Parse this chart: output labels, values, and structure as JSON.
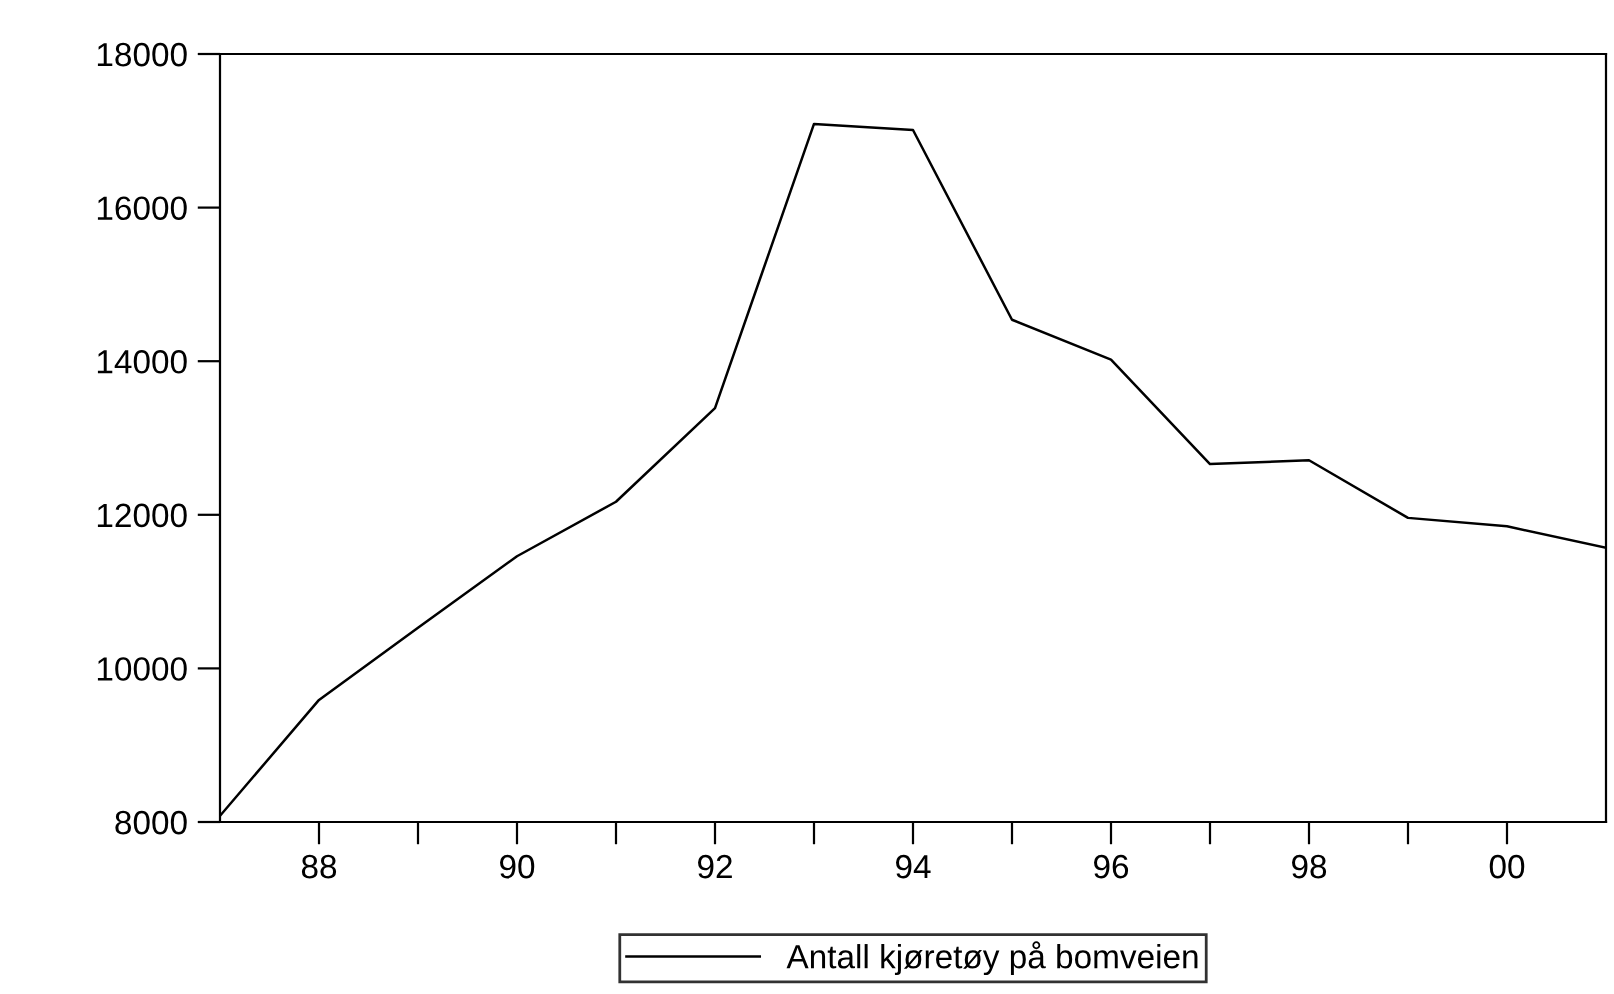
{
  "chart_data": {
    "type": "line",
    "x": [
      1987,
      1988,
      1989,
      1990,
      1991,
      1992,
      1993,
      1994,
      1995,
      1996,
      1997,
      1998,
      1999,
      2000,
      2001
    ],
    "series": [
      {
        "name": "Antall kjøretøy på bomveien",
        "color": "#000000",
        "values": [
          8080,
          9590,
          10530,
          11460,
          12170,
          13390,
          17090,
          17010,
          14540,
          14020,
          12660,
          12710,
          11960,
          11850,
          11570
        ]
      }
    ],
    "xlim": [
      1987,
      2001
    ],
    "xticks": [
      {
        "value": 1988,
        "label": "88"
      },
      {
        "value": 1989,
        "label": null
      },
      {
        "value": 1990,
        "label": "90"
      },
      {
        "value": 1991,
        "label": null
      },
      {
        "value": 1992,
        "label": "92"
      },
      {
        "value": 1993,
        "label": null
      },
      {
        "value": 1994,
        "label": "94"
      },
      {
        "value": 1995,
        "label": null
      },
      {
        "value": 1996,
        "label": "96"
      },
      {
        "value": 1997,
        "label": null
      },
      {
        "value": 1998,
        "label": "98"
      },
      {
        "value": 1999,
        "label": null
      },
      {
        "value": 2000,
        "label": "00"
      }
    ],
    "ylim": [
      8000,
      18000
    ],
    "yticks": [
      8000,
      10000,
      12000,
      14000,
      16000,
      18000
    ],
    "grid": false,
    "legend": "bottom",
    "marker": "none",
    "line_style": "solid"
  }
}
